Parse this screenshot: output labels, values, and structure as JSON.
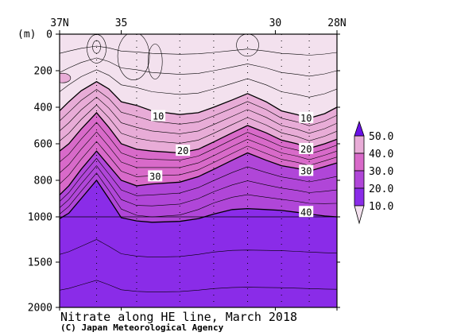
{
  "chart_data": {
    "type": "contour",
    "title": "Nitrate along HE line, March 2018",
    "credit": "(C) Japan Meteorological Agency",
    "depth_unit": "(m)",
    "lat_ticks": [
      "37N",
      "35",
      "30",
      "28N"
    ],
    "lat_tick_values": [
      37,
      35,
      30,
      28
    ],
    "xlim": [
      37,
      28
    ],
    "depth_ticks": [
      "0",
      "200",
      "400",
      "600",
      "800",
      "1000",
      "1500",
      "2000"
    ],
    "depth_tick_values": [
      0,
      200,
      400,
      600,
      800,
      1000,
      1500,
      2000
    ],
    "ylim": [
      0,
      2000
    ],
    "depth_scale_note": "0-1000 m and 1000-2000 m drawn at different scales",
    "stations_lat": [
      35.8,
      34.5,
      33.1,
      32.0,
      30.9,
      29.8,
      28.9
    ],
    "contour_interval": 2.5,
    "labelled_levels": [
      10,
      20,
      30,
      40
    ],
    "contour_labels": [
      {
        "text": "10",
        "lat": 33.8,
        "depth": 450
      },
      {
        "text": "10",
        "lat": 29.0,
        "depth": 460
      },
      {
        "text": "20",
        "lat": 33.0,
        "depth": 640
      },
      {
        "text": "20",
        "lat": 29.0,
        "depth": 630
      },
      {
        "text": "30",
        "lat": 33.9,
        "depth": 780
      },
      {
        "text": "30",
        "lat": 29.0,
        "depth": 750
      },
      {
        "text": "40",
        "lat": 29.0,
        "depth": 975
      }
    ],
    "colorbar": {
      "labels": [
        "50.0",
        "40.0",
        "30.0",
        "20.0",
        "10.0"
      ],
      "values": [
        50,
        40,
        30,
        20,
        10
      ],
      "colors_low_to_high": [
        "#f3e1ee",
        "#e8acd7",
        "#d86ac9",
        "#b046d8",
        "#8a2ce8",
        "#6a10e8"
      ],
      "extend": "both"
    },
    "depth_profile": {
      "lat": [
        37.0,
        36.7,
        36.3,
        35.8,
        35.4,
        35.0,
        34.5,
        34.0,
        33.1,
        32.5,
        32.0,
        31.4,
        30.9,
        30.3,
        29.8,
        29.3,
        28.9,
        28.4,
        28.0
      ],
      "d10": [
        420,
        370,
        310,
        260,
        300,
        370,
        390,
        420,
        440,
        430,
        400,
        360,
        325,
        370,
        420,
        440,
        460,
        435,
        400
      ],
      "d20": [
        640,
        600,
        520,
        430,
        510,
        600,
        630,
        640,
        650,
        630,
        590,
        540,
        500,
        540,
        580,
        600,
        625,
        600,
        575
      ],
      "d30": [
        880,
        830,
        740,
        640,
        720,
        800,
        830,
        820,
        810,
        780,
        740,
        690,
        650,
        690,
        720,
        735,
        750,
        725,
        705
      ],
      "d40": [
        1020,
        980,
        900,
        800,
        900,
        1010,
        1045,
        1060,
        1050,
        1020,
        985,
        960,
        955,
        960,
        965,
        975,
        985,
        995,
        1000
      ]
    }
  }
}
